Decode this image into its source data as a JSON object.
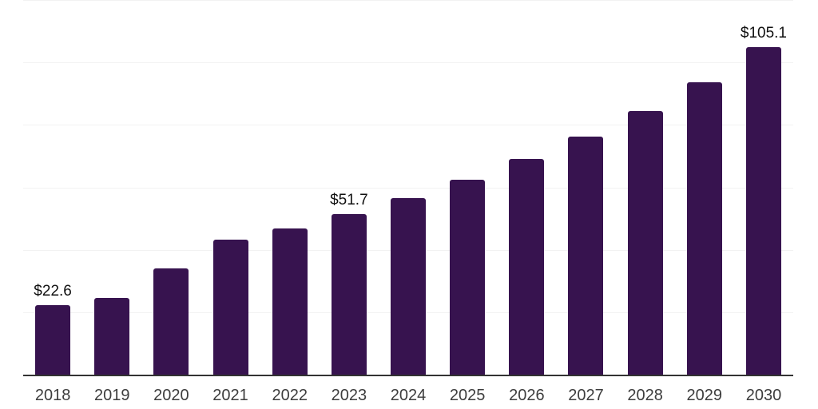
{
  "chart_data": {
    "type": "bar",
    "title": "",
    "xlabel": "",
    "ylabel": "",
    "categories": [
      "2018",
      "2019",
      "2020",
      "2021",
      "2022",
      "2023",
      "2024",
      "2025",
      "2026",
      "2027",
      "2028",
      "2029",
      "2030"
    ],
    "values": [
      22.6,
      24.9,
      34.4,
      43.4,
      47.2,
      51.7,
      56.9,
      62.8,
      69.4,
      76.6,
      84.8,
      94.0,
      105.1
    ],
    "value_prefix": "$",
    "data_labels": [
      {
        "category": "2018",
        "text": "$22.6"
      },
      {
        "category": "2023",
        "text": "$51.7"
      },
      {
        "category": "2030",
        "text": "$105.1"
      }
    ],
    "ylim": [
      0,
      120
    ],
    "ytick_step": 20,
    "grid": "horizontal gridlines, no y-axis tick labels",
    "legend": "none",
    "colors": {
      "bar": "#37134f",
      "gridline": "#f2f2f2",
      "axis_line": "#333333",
      "data_label_text": "#111111",
      "x_tick_text": "#3d3d3d",
      "background": "#ffffff"
    }
  }
}
